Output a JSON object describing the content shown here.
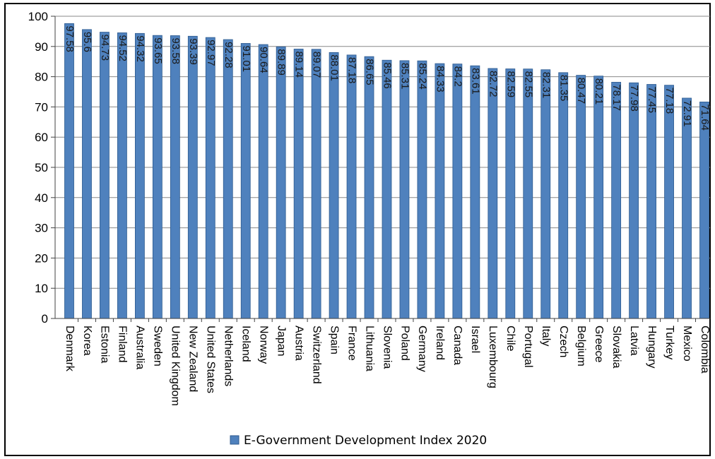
{
  "chart_data": {
    "type": "bar",
    "categories": [
      "Denmark",
      "Korea",
      "Estonia",
      "Finland",
      "Australia",
      "Sweden",
      "United Kingdom",
      "New Zealand",
      "United States",
      "Netherlands",
      "Iceland",
      "Norway",
      "Japan",
      "Austria",
      "Switzerland",
      "Spain",
      "France",
      "Lithuania",
      "Slovenia",
      "Poland",
      "Germany",
      "Ireland",
      "Canada",
      "Israel",
      "Luxembourg",
      "Chile",
      "Portugal",
      "Italy",
      "Czech",
      "Belgium",
      "Greece",
      "Slovakia",
      "Latvia",
      "Hungary",
      "Turkey",
      "Mexico",
      "Colombia"
    ],
    "values": [
      97.58,
      95.6,
      94.73,
      94.52,
      94.32,
      93.65,
      93.58,
      93.39,
      92.97,
      92.28,
      91.01,
      90.64,
      89.89,
      89.14,
      89.07,
      88.01,
      87.18,
      86.65,
      85.46,
      85.31,
      85.24,
      84.33,
      84.2,
      83.61,
      82.72,
      82.59,
      82.55,
      82.31,
      81.35,
      80.47,
      80.21,
      78.17,
      77.98,
      77.45,
      77.18,
      72.91,
      71.64
    ],
    "value_labels": [
      "97.58",
      "95.6",
      "94.73",
      "94.52",
      "94.32",
      "93.65",
      "93.58",
      "93.39",
      "92.97",
      "92.28",
      "91.01",
      "90.64",
      "89.89",
      "89.14",
      "89.07",
      "88.01",
      "87.18",
      "86.65",
      "85.46",
      "85.31",
      "85.24",
      "84.33",
      "84.2",
      "83.61",
      "82.72",
      "82.59",
      "82.55",
      "82.31",
      "81.35",
      "80.47",
      "80.21",
      "78.17",
      "77.98",
      "77.45",
      "77.18",
      "72.91",
      "71.64"
    ],
    "series": [
      {
        "name": "E-Government Development Index 2020"
      }
    ],
    "ylim": [
      0,
      100
    ],
    "yticks": [
      0,
      10,
      20,
      30,
      40,
      50,
      60,
      70,
      80,
      90,
      100
    ],
    "ytick_labels": [
      "0",
      "10",
      "20",
      "30",
      "40",
      "50",
      "60",
      "70",
      "80",
      "90",
      "100"
    ],
    "grid": true,
    "legend_position": "bottom",
    "colors": {
      "bar": "#4f81bd",
      "bar_edge": "#2c5a8f",
      "grid": "#888888",
      "axis": "#404040"
    }
  }
}
